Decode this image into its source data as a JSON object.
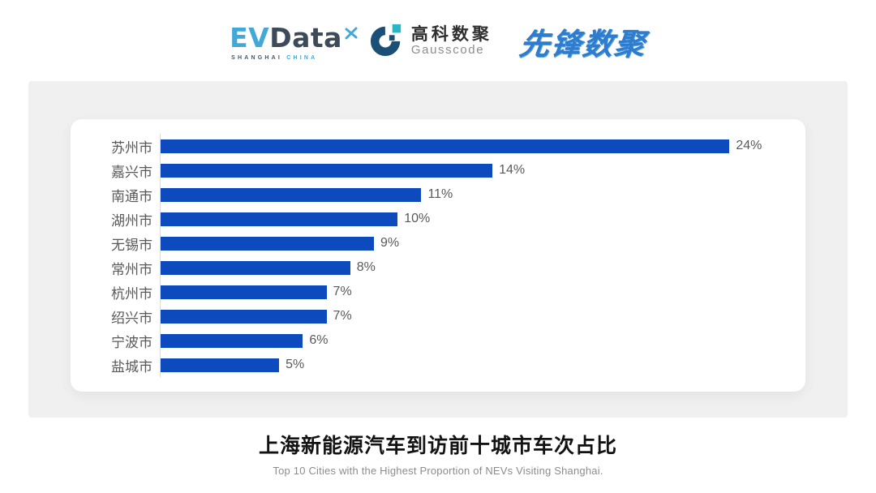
{
  "header": {
    "evdata": {
      "ev": "EV",
      "data": "Data",
      "sub_left": "SHANGHAI",
      "sub_right": "CHINA"
    },
    "gausscode": {
      "cn": "高科数聚",
      "en": "Gausscode"
    },
    "xianfeng": {
      "text": "先锋数聚"
    }
  },
  "chart_data": {
    "type": "bar",
    "orientation": "horizontal",
    "categories": [
      "苏州市",
      "嘉兴市",
      "南通市",
      "湖州市",
      "无锡市",
      "常州市",
      "杭州市",
      "绍兴市",
      "宁波市",
      "盐城市"
    ],
    "values": [
      24,
      14,
      11,
      10,
      9,
      8,
      7,
      7,
      6,
      5
    ],
    "value_labels": [
      "24%",
      "14%",
      "11%",
      "10%",
      "9%",
      "8%",
      "7%",
      "7%",
      "6%",
      "5%"
    ],
    "xlim": [
      0,
      27
    ],
    "grid": false,
    "legend": "none",
    "bar_color": "#0c4abe",
    "title": "上海新能源汽车到访前十城市车次占比",
    "subtitle": "Top 10 Cities with the Highest Proportion of  NEVs Visiting Shanghai.",
    "xlabel": "",
    "ylabel": ""
  },
  "colors": {
    "bar_blue": "#0c4abe",
    "evdata_cyan": "#42a8da",
    "evdata_dark": "#3d4a59",
    "gauss_navy": "#1c4f76",
    "gauss_teal": "#29b6c5",
    "xianfeng_blue": "#2d7ccd",
    "panel_gray": "#f0f0f1",
    "label_gray": "#595959"
  }
}
